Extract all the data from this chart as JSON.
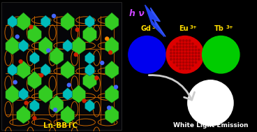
{
  "background_color": "#000000",
  "hv_text_color": "#cc44ff",
  "lightning_color": "#2244ee",
  "label_ln": "Ln-BBTC",
  "label_ln_color": "#ffdd00",
  "ion_label_color": "#ffdd00",
  "circle_colors": [
    "#0000ee",
    "#dd0000",
    "#00dd00"
  ],
  "ion_base": [
    "Gd",
    "Eu",
    "Tb"
  ],
  "white_light_text": "White Light Emission",
  "white_light_color": "#ffffff",
  "arrow_color": "#cccccc",
  "struct_bg": "#050508",
  "orange_lattice": "#cc6600",
  "green_color": "#33cc22",
  "cyan_color": "#00bbbb"
}
